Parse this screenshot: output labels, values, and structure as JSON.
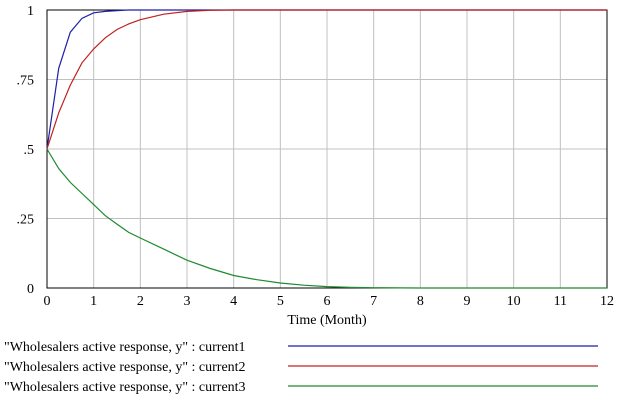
{
  "chart_data": {
    "type": "line",
    "title": "",
    "xlabel": "Time (Month)",
    "ylabel": "",
    "xlim": [
      0,
      12
    ],
    "ylim": [
      0,
      1
    ],
    "grid": true,
    "legend_position": "bottom",
    "x_ticks": [
      0,
      1,
      2,
      3,
      4,
      5,
      6,
      7,
      8,
      9,
      10,
      11,
      12
    ],
    "x_tick_labels": [
      "0",
      "1",
      "2",
      "3",
      "4",
      "5",
      "6",
      "7",
      "8",
      "9",
      "10",
      "11",
      "12"
    ],
    "y_ticks": [
      0,
      0.25,
      0.5,
      0.75,
      1
    ],
    "y_tick_labels": [
      "0",
      ".25",
      ".5",
      ".75",
      "1"
    ],
    "x": [
      0,
      0.25,
      0.5,
      0.75,
      1,
      1.25,
      1.5,
      1.75,
      2,
      2.5,
      3,
      3.5,
      4,
      4.5,
      5,
      5.5,
      6,
      6.5,
      7,
      8,
      9,
      10,
      11,
      12
    ],
    "series": [
      {
        "name": "\"Wholesalers active response, y\" : current1",
        "color": "#1f1fa8",
        "values": [
          0.5,
          0.79,
          0.92,
          0.97,
          0.99,
          0.995,
          0.998,
          1,
          1,
          1,
          1,
          1,
          1,
          1,
          1,
          1,
          1,
          1,
          1,
          1,
          1,
          1,
          1,
          1
        ]
      },
      {
        "name": "\"Wholesalers active response, y\" : current2",
        "color": "#c02020",
        "values": [
          0.5,
          0.63,
          0.73,
          0.81,
          0.86,
          0.9,
          0.93,
          0.95,
          0.965,
          0.985,
          0.995,
          0.999,
          1,
          1,
          1,
          1,
          1,
          1,
          1,
          1,
          1,
          1,
          1,
          1
        ]
      },
      {
        "name": "\"Wholesalers active response, y\" : current3",
        "color": "#1f8a2f",
        "values": [
          0.5,
          0.43,
          0.38,
          0.34,
          0.3,
          0.26,
          0.23,
          0.2,
          0.18,
          0.14,
          0.1,
          0.07,
          0.045,
          0.03,
          0.018,
          0.01,
          0.005,
          0.002,
          0.001,
          0,
          0,
          0,
          0,
          0
        ]
      }
    ]
  }
}
